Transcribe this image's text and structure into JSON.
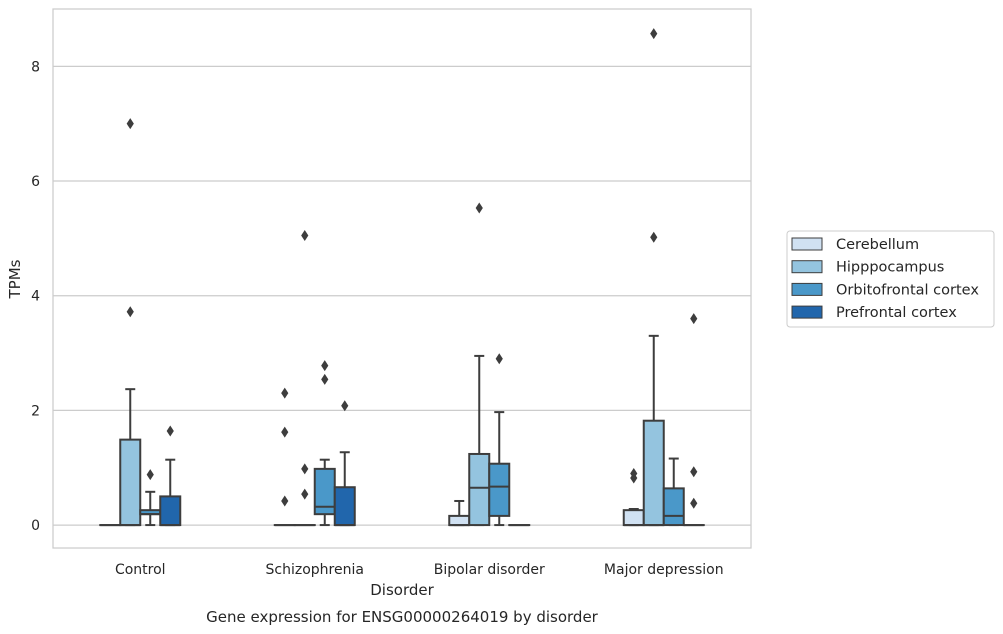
{
  "chart_data": {
    "type": "box",
    "title": "",
    "caption": "Gene expression for ENSG00000264019 by disorder",
    "xlabel": "Disorder",
    "ylabel": "TPMs",
    "categories": [
      "Control",
      "Schizophrenia",
      "Bipolar disorder",
      "Major depression"
    ],
    "ylim": [
      -0.4,
      9.0
    ],
    "yticks": [
      0,
      2,
      4,
      6,
      8
    ],
    "grid": true,
    "legend_position": "right",
    "series": [
      {
        "name": "Cerebellum",
        "color": "#d0e1f2",
        "boxes": [
          {
            "min": 0,
            "q1": 0,
            "median": 0,
            "q3": 0,
            "max": 0,
            "outliers": []
          },
          {
            "min": 0,
            "q1": 0,
            "median": 0,
            "q3": 0,
            "max": 0,
            "outliers": [
              0.42,
              1.62,
              2.3
            ]
          },
          {
            "min": 0,
            "q1": 0,
            "median": 0,
            "q3": 0.16,
            "max": 0.42,
            "outliers": []
          },
          {
            "min": 0,
            "q1": 0,
            "median": 0,
            "q3": 0.26,
            "max": 0.28,
            "outliers": [
              0.82,
              0.9
            ]
          }
        ]
      },
      {
        "name": "Hipppocampus",
        "color": "#94c4df",
        "boxes": [
          {
            "min": 0,
            "q1": 0,
            "median": 0,
            "q3": 1.49,
            "max": 2.37,
            "outliers": [
              3.72,
              7.0
            ]
          },
          {
            "min": 0,
            "q1": 0,
            "median": 0,
            "q3": 0,
            "max": 0,
            "outliers": [
              0.54,
              0.98,
              5.05
            ]
          },
          {
            "min": 0,
            "q1": 0,
            "median": 0.65,
            "q3": 1.24,
            "max": 2.95,
            "outliers": [
              5.53
            ]
          },
          {
            "min": 0,
            "q1": 0,
            "median": 0,
            "q3": 1.82,
            "max": 3.3,
            "outliers": [
              5.02,
              8.57
            ]
          }
        ]
      },
      {
        "name": "Orbitofrontal cortex",
        "color": "#4a98c9",
        "boxes": [
          {
            "min": 0,
            "q1": 0.19,
            "median": 0.19,
            "q3": 0.26,
            "max": 0.58,
            "outliers": [
              0.88
            ]
          },
          {
            "min": 0,
            "q1": 0.19,
            "median": 0.32,
            "q3": 0.98,
            "max": 1.14,
            "outliers": [
              2.54,
              2.78
            ]
          },
          {
            "min": 0,
            "q1": 0.16,
            "median": 0.67,
            "q3": 1.07,
            "max": 1.97,
            "outliers": [
              2.9
            ]
          },
          {
            "min": 0,
            "q1": 0,
            "median": 0.16,
            "q3": 0.64,
            "max": 1.16,
            "outliers": []
          }
        ]
      },
      {
        "name": "Prefrontal cortex",
        "color": "#2166ac",
        "boxes": [
          {
            "min": 0,
            "q1": 0,
            "median": 0,
            "q3": 0.5,
            "max": 1.14,
            "outliers": [
              1.64
            ]
          },
          {
            "min": 0,
            "q1": 0,
            "median": 0,
            "q3": 0.66,
            "max": 1.27,
            "outliers": [
              2.08
            ]
          },
          {
            "min": 0,
            "q1": 0,
            "median": 0,
            "q3": 0,
            "max": 0,
            "outliers": []
          },
          {
            "min": 0,
            "q1": 0,
            "median": 0,
            "q3": 0,
            "max": 0,
            "outliers": [
              0.38,
              0.93,
              3.6
            ]
          }
        ]
      }
    ]
  }
}
